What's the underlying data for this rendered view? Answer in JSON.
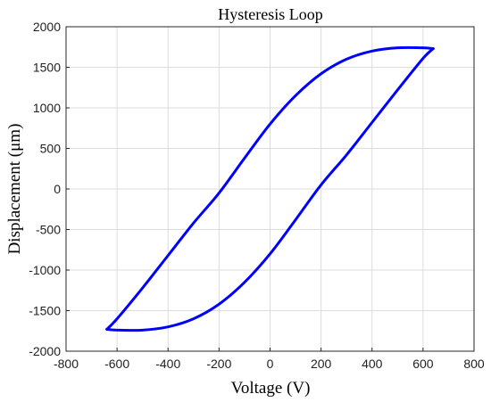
{
  "chart_data": {
    "type": "line",
    "title": "Hysteresis Loop",
    "xlabel": "Voltage (V)",
    "ylabel": "Displacement (μm)",
    "xlim": [
      -800,
      800
    ],
    "ylim": [
      -2000,
      2000
    ],
    "xticks": [
      -800,
      -600,
      -400,
      -200,
      0,
      200,
      400,
      600,
      800
    ],
    "yticks": [
      -2000,
      -1500,
      -1000,
      -500,
      0,
      500,
      1000,
      1500,
      2000
    ],
    "xtick_labels": [
      "-800",
      "-600",
      "-400",
      "-200",
      "0",
      "200",
      "400",
      "600",
      "800"
    ],
    "ytick_labels": [
      "-2000",
      "-1500",
      "-1000",
      "-500",
      "0",
      "500",
      "1000",
      "1500",
      "2000"
    ],
    "grid": true,
    "series": [
      {
        "color": "#0000ff",
        "x": [
          -640,
          -600,
          -500,
          -400,
          -300,
          -200,
          -100,
          0,
          100,
          200,
          300,
          400,
          500,
          600,
          640,
          600,
          500,
          400,
          300,
          200,
          100,
          0,
          -100,
          -200,
          -300,
          -400,
          -500,
          -600,
          -640
        ],
        "y": [
          -1730,
          -1600,
          -1220,
          -820,
          -420,
          -50,
          380,
          800,
          1150,
          1420,
          1600,
          1700,
          1740,
          1740,
          1730,
          1610,
          1220,
          820,
          420,
          50,
          -380,
          -800,
          -1150,
          -1420,
          -1600,
          -1700,
          -1740,
          -1740,
          -1730
        ]
      }
    ]
  }
}
